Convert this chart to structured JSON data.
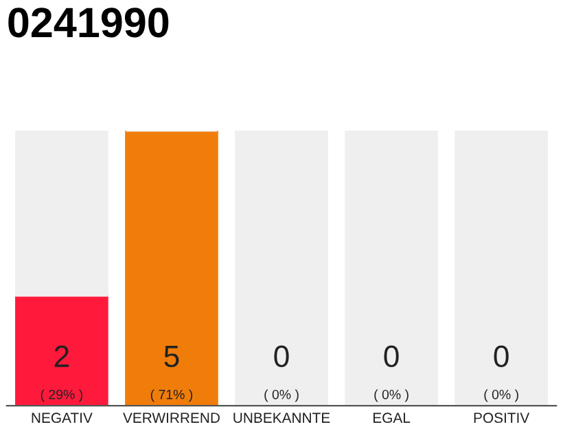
{
  "chart_data": {
    "type": "bar",
    "title": "0241990",
    "categories": [
      "NEGATIV",
      "VERWIRREND",
      "UNBEKANNTE",
      "EGAL",
      "POSITIV"
    ],
    "stacked": true,
    "series": [
      {
        "colors": [
          "#ff1a3c",
          "#f07d0a",
          "#efefef",
          "#efefef",
          "#efefef"
        ],
        "values": [
          2,
          5,
          0,
          0,
          0
        ],
        "value_labels": [
          "2\n( 29% )",
          "5\n( 71% )",
          "0\n( 0% )",
          "0\n( 0% )",
          "0\n( 0% )"
        ]
      },
      {
        "color": "#efefef",
        "values": [
          3,
          0,
          5,
          5,
          5
        ]
      }
    ],
    "ylim": [
      0,
      5
    ],
    "tick_labels": "x",
    "grid": false,
    "legend": false
  }
}
